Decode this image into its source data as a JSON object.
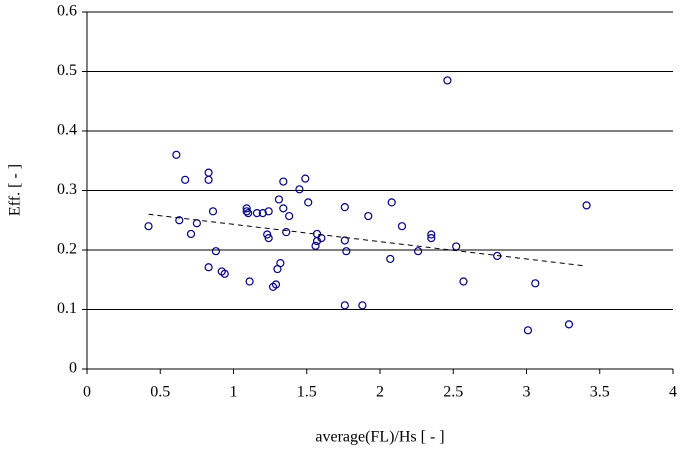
{
  "chart_data": {
    "type": "scatter",
    "x_label": "average(FL)/Hs [ - ]",
    "y_label": "Eff. [ - ]",
    "x": [
      0.42,
      0.61,
      0.63,
      0.67,
      0.71,
      0.75,
      0.83,
      0.83,
      0.83,
      0.86,
      0.88,
      0.92,
      0.94,
      1.09,
      1.09,
      1.1,
      1.11,
      1.16,
      1.2,
      1.23,
      1.24,
      1.24,
      1.27,
      1.29,
      1.3,
      1.31,
      1.32,
      1.34,
      1.34,
      1.36,
      1.38,
      1.45,
      1.49,
      1.51,
      1.56,
      1.57,
      1.57,
      1.6,
      1.76,
      1.76,
      1.77,
      1.76,
      1.88,
      1.92,
      2.07,
      2.08,
      2.15,
      2.26,
      2.35,
      2.35,
      2.46,
      2.52,
      2.57,
      2.8,
      3.01,
      3.06,
      3.29,
      3.41
    ],
    "values": [
      0.24,
      0.36,
      0.25,
      0.318,
      0.227,
      0.245,
      0.33,
      0.318,
      0.171,
      0.265,
      0.198,
      0.164,
      0.16,
      0.27,
      0.265,
      0.262,
      0.147,
      0.262,
      0.262,
      0.226,
      0.22,
      0.265,
      0.138,
      0.142,
      0.168,
      0.285,
      0.178,
      0.315,
      0.27,
      0.23,
      0.257,
      0.302,
      0.32,
      0.28,
      0.207,
      0.227,
      0.215,
      0.22,
      0.272,
      0.216,
      0.198,
      0.107,
      0.107,
      0.257,
      0.185,
      0.28,
      0.24,
      0.198,
      0.226,
      0.22,
      0.485,
      0.206,
      0.147,
      0.19,
      0.065,
      0.144,
      0.075,
      0.275
    ],
    "color": "#000080",
    "trendline": {
      "x": [
        0.42,
        3.41
      ],
      "values": [
        0.26,
        0.173
      ]
    },
    "xlim": [
      0,
      4
    ],
    "xticks": [
      0,
      0.5,
      1,
      1.5,
      2,
      2.5,
      3,
      3.5,
      4
    ],
    "ylim": [
      0,
      0.6
    ],
    "yticks": [
      0,
      0.1,
      0.2,
      0.3,
      0.4,
      0.5,
      0.6
    ],
    "grid": true
  }
}
